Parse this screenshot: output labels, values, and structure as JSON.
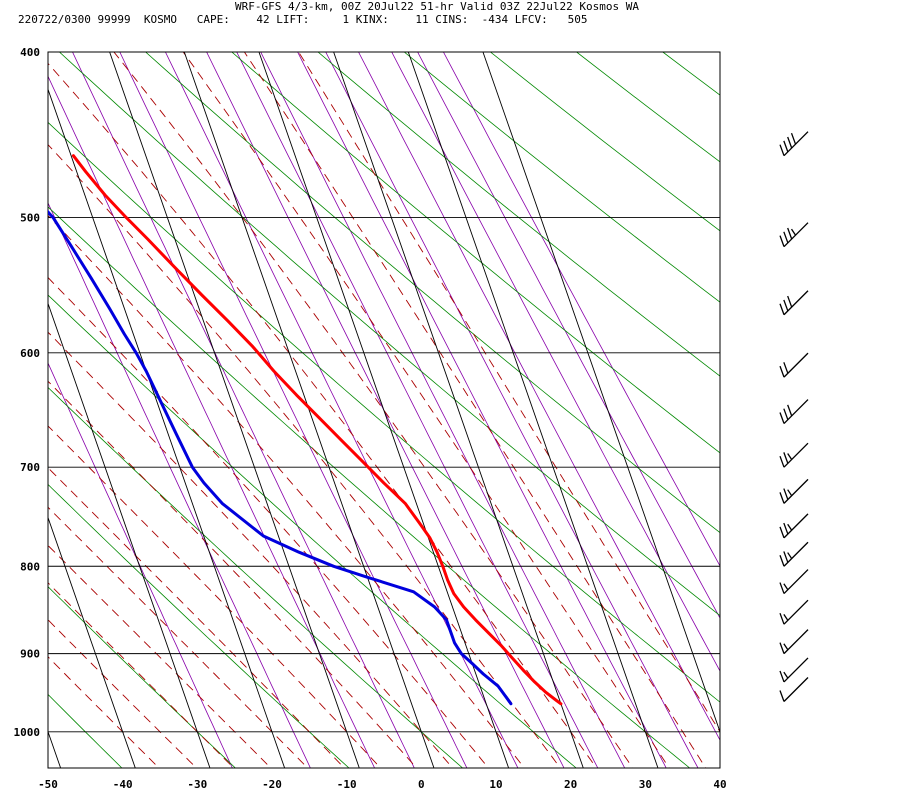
{
  "header": {
    "title": "WRF-GFS 4/3-km, 00Z 20Jul22 51-hr Valid 03Z 22Jul22 Kosmos WA",
    "stats_line": "220722/0300 99999  KOSMO   CAPE:    42 LIFT:     1 KINX:    11 CINS:  -434 LFCV:   505"
  },
  "chart_data": {
    "type": "line",
    "title": "WRF-GFS 4/3-km, 00Z 20Jul22 51-hr Valid 03Z 22Jul22 Kosmos WA",
    "xlabel": "",
    "ylabel": "",
    "x_axis": {
      "ticks": [
        -50,
        -40,
        -30,
        -20,
        -10,
        0,
        10,
        20,
        30,
        40
      ],
      "range": [
        -50,
        40
      ],
      "units": "°C"
    },
    "y_axis": {
      "ticks": [
        400,
        500,
        600,
        700,
        800,
        900,
        1000
      ],
      "range": [
        400,
        1050
      ],
      "scale": "log",
      "units": "hPa"
    },
    "grid": true,
    "series": [
      {
        "key": "temperature",
        "color": "#ff0000",
        "points": [
          [
            20.0,
            963
          ],
          [
            19.5,
            958
          ],
          [
            18.5,
            948
          ],
          [
            17.5,
            935
          ],
          [
            16.5,
            920
          ],
          [
            15.6,
            905
          ],
          [
            14.7,
            890
          ],
          [
            13.6,
            875
          ],
          [
            12.5,
            860
          ],
          [
            11.5,
            845
          ],
          [
            10.8,
            830
          ],
          [
            10.6,
            815
          ],
          [
            10.6,
            800
          ],
          [
            10.5,
            785
          ],
          [
            10.2,
            770
          ],
          [
            9.5,
            755
          ],
          [
            8.5,
            735
          ],
          [
            6.6,
            715
          ],
          [
            4.8,
            695
          ],
          [
            2.9,
            675
          ],
          [
            1.0,
            655
          ],
          [
            -1.0,
            635
          ],
          [
            -2.9,
            615
          ],
          [
            -4.6,
            595
          ],
          [
            -6.7,
            575
          ],
          [
            -9.0,
            555
          ],
          [
            -11.3,
            535
          ],
          [
            -13.6,
            515
          ],
          [
            -15.5,
            500
          ],
          [
            -17.3,
            485
          ],
          [
            -18.8,
            470
          ],
          [
            -19.7,
            460
          ]
        ]
      },
      {
        "key": "dewpoint",
        "color": "#0000dd",
        "points": [
          [
            13.3,
            963
          ],
          [
            13.0,
            955
          ],
          [
            12.4,
            940
          ],
          [
            11.0,
            925
          ],
          [
            10.0,
            912
          ],
          [
            9.0,
            900
          ],
          [
            8.6,
            887
          ],
          [
            8.6,
            875
          ],
          [
            8.6,
            860
          ],
          [
            7.6,
            845
          ],
          [
            5.5,
            828
          ],
          [
            0.0,
            812
          ],
          [
            -4.0,
            800
          ],
          [
            -8.0,
            785
          ],
          [
            -12.0,
            768
          ],
          [
            -16.0,
            735
          ],
          [
            -17.5,
            715
          ],
          [
            -18.3,
            700
          ],
          [
            -18.9,
            670
          ],
          [
            -19.5,
            640
          ],
          [
            -20.0,
            615
          ],
          [
            -20.5,
            600
          ],
          [
            -21.2,
            585
          ],
          [
            -22.0,
            565
          ],
          [
            -23.0,
            543
          ],
          [
            -24.2,
            520
          ],
          [
            -25.3,
            500
          ],
          [
            -27.0,
            485
          ],
          [
            -28.5,
            470
          ],
          [
            -30.0,
            458
          ]
        ]
      }
    ],
    "background_lines": {
      "dry_adiabats_color": "#008800",
      "moist_adiabats_color": "#aa0000",
      "mixing_ratio_color": "#8800aa"
    },
    "wind_barbs": {
      "color": "#000000",
      "levels": [
        {
          "p": 460,
          "speed": 40
        },
        {
          "p": 520,
          "speed": 35
        },
        {
          "p": 570,
          "speed": 30
        },
        {
          "p": 620,
          "speed": 20
        },
        {
          "p": 660,
          "speed": 30
        },
        {
          "p": 700,
          "speed": 25
        },
        {
          "p": 735,
          "speed": 25
        },
        {
          "p": 770,
          "speed": 25
        },
        {
          "p": 800,
          "speed": 25
        },
        {
          "p": 830,
          "speed": 15
        },
        {
          "p": 865,
          "speed": 15
        },
        {
          "p": 900,
          "speed": 15
        },
        {
          "p": 935,
          "speed": 15
        },
        {
          "p": 960,
          "speed": 10
        }
      ]
    }
  }
}
